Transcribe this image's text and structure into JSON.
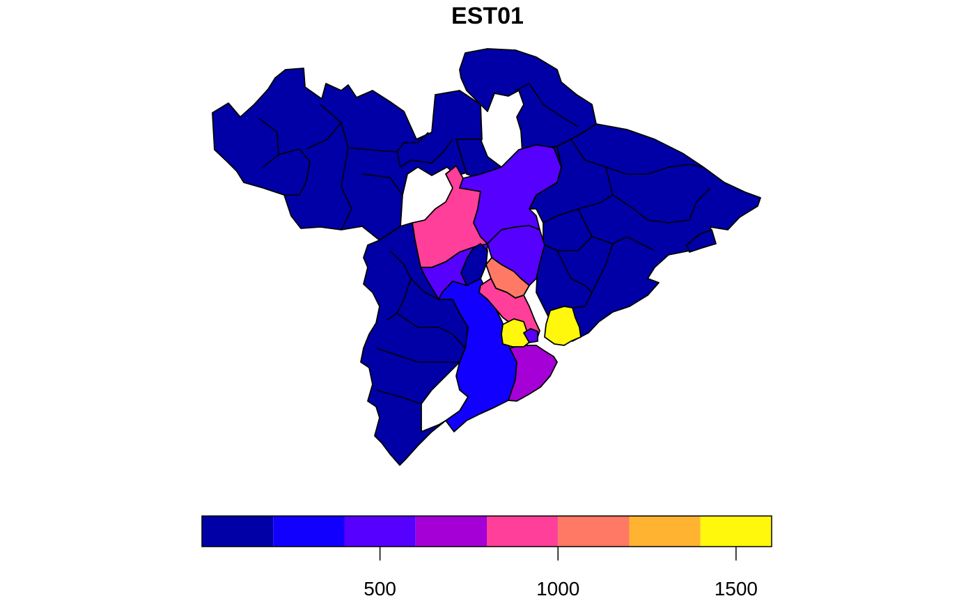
{
  "title": "EST01",
  "legend": {
    "bins": [
      {
        "from": 0,
        "to": 200,
        "color": "#0000A6"
      },
      {
        "from": 200,
        "to": 400,
        "color": "#1200FF"
      },
      {
        "from": 400,
        "to": 600,
        "color": "#5600FF"
      },
      {
        "from": 600,
        "to": 800,
        "color": "#A500D6"
      },
      {
        "from": 800,
        "to": 1000,
        "color": "#FF3F99"
      },
      {
        "from": 1000,
        "to": 1200,
        "color": "#FF7965"
      },
      {
        "from": 1200,
        "to": 1400,
        "color": "#FFB331"
      },
      {
        "from": 1400,
        "to": 1600,
        "color": "#FFF80C"
      }
    ],
    "ticks": [
      {
        "value": 500,
        "label": "500"
      },
      {
        "value": 1000,
        "label": "1000"
      },
      {
        "value": 1500,
        "label": "1500"
      }
    ],
    "range": [
      0,
      1600
    ]
  }
}
